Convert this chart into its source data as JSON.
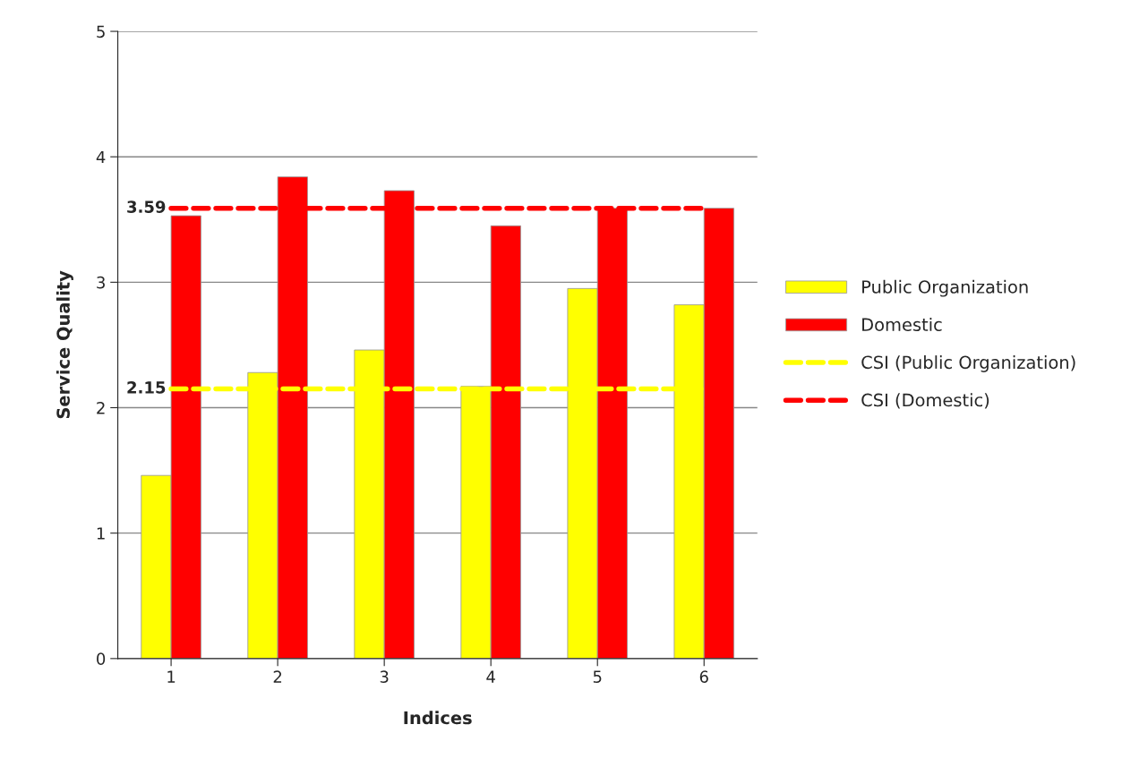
{
  "chart_data": {
    "type": "bar",
    "xlabel": "Indices",
    "ylabel": "Service Quality",
    "categories": [
      "1",
      "2",
      "3",
      "4",
      "5",
      "6"
    ],
    "series": [
      {
        "name": "Public Organization",
        "color": "#ffff00",
        "values": [
          1.46,
          2.28,
          2.46,
          2.17,
          2.95,
          2.82
        ]
      },
      {
        "name": "Domestic",
        "color": "#ff0000",
        "values": [
          3.53,
          3.84,
          3.73,
          3.45,
          3.59,
          3.59
        ]
      },
      {
        "name": "CSI (Public Organization)",
        "type": "line",
        "line_style": "dashed",
        "color": "#ffff00",
        "values": [
          2.15,
          2.15,
          2.15,
          2.15,
          2.15,
          2.15
        ],
        "value_labels": [
          "2.15",
          null,
          null,
          null,
          null,
          null
        ]
      },
      {
        "name": "CSI (Domestic)",
        "type": "line",
        "line_style": "dashed",
        "color": "#ff0000",
        "values": [
          3.59,
          3.59,
          3.59,
          3.59,
          3.59,
          3.59
        ],
        "value_labels": [
          "3.59",
          null,
          null,
          null,
          null,
          null
        ]
      }
    ],
    "ylim": [
      0,
      5
    ],
    "yticks": [
      0,
      1,
      2,
      3,
      4,
      5
    ],
    "grid": "y",
    "legend": "right"
  }
}
